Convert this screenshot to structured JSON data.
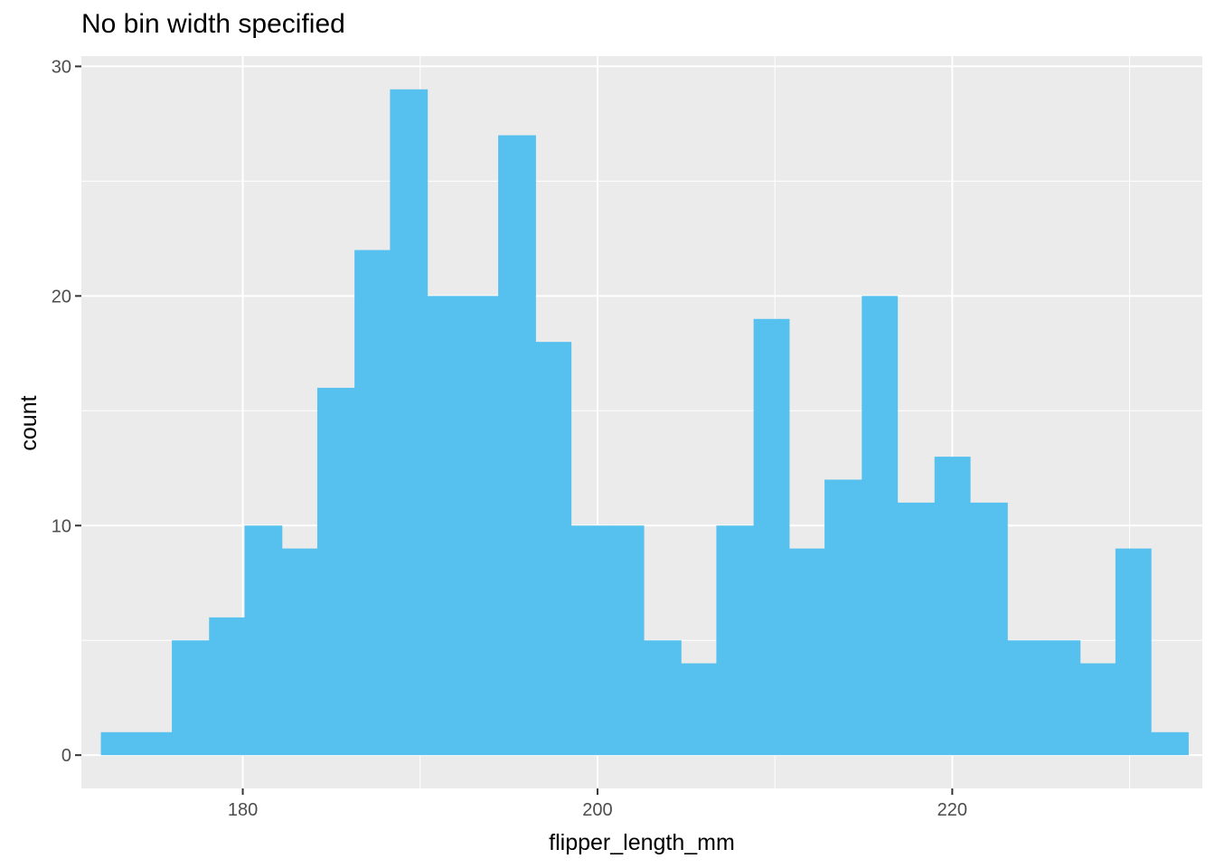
{
  "chart_data": {
    "type": "bar",
    "title": "No bin width specified",
    "xlabel": "flipper_length_mm",
    "ylabel": "count",
    "xlim": [
      170.9,
      234.1
    ],
    "ylim": [
      -1.45,
      30.45
    ],
    "x_ticks": [
      180,
      200,
      220
    ],
    "y_ticks": [
      0,
      10,
      20,
      30
    ],
    "grid": true,
    "fill_color": "#56C1EF",
    "panel_color": "#EBEBEB",
    "grid_color": "#FFFFFF",
    "bins": [
      {
        "x0": 172.0,
        "x1": 174.0,
        "count": 1
      },
      {
        "x0": 174.0,
        "x1": 176.0,
        "count": 1
      },
      {
        "x0": 176.0,
        "x1": 178.1,
        "count": 5
      },
      {
        "x0": 178.1,
        "x1": 180.1,
        "count": 6
      },
      {
        "x0": 180.1,
        "x1": 182.2,
        "count": 10
      },
      {
        "x0": 182.2,
        "x1": 184.2,
        "count": 9
      },
      {
        "x0": 184.2,
        "x1": 186.3,
        "count": 16
      },
      {
        "x0": 186.3,
        "x1": 188.3,
        "count": 22
      },
      {
        "x0": 188.3,
        "x1": 190.4,
        "count": 29
      },
      {
        "x0": 190.4,
        "x1": 192.4,
        "count": 20
      },
      {
        "x0": 192.4,
        "x1": 194.4,
        "count": 20
      },
      {
        "x0": 194.4,
        "x1": 196.5,
        "count": 27
      },
      {
        "x0": 196.5,
        "x1": 198.5,
        "count": 18
      },
      {
        "x0": 198.5,
        "x1": 200.6,
        "count": 10
      },
      {
        "x0": 200.6,
        "x1": 202.6,
        "count": 10
      },
      {
        "x0": 202.6,
        "x1": 204.7,
        "count": 5
      },
      {
        "x0": 204.7,
        "x1": 206.7,
        "count": 4
      },
      {
        "x0": 206.7,
        "x1": 208.8,
        "count": 10
      },
      {
        "x0": 208.8,
        "x1": 210.8,
        "count": 19
      },
      {
        "x0": 210.8,
        "x1": 212.8,
        "count": 9
      },
      {
        "x0": 212.8,
        "x1": 214.9,
        "count": 12
      },
      {
        "x0": 214.9,
        "x1": 216.9,
        "count": 20
      },
      {
        "x0": 216.9,
        "x1": 219.0,
        "count": 11
      },
      {
        "x0": 219.0,
        "x1": 221.0,
        "count": 13
      },
      {
        "x0": 221.0,
        "x1": 223.1,
        "count": 11
      },
      {
        "x0": 223.1,
        "x1": 225.1,
        "count": 5
      },
      {
        "x0": 225.1,
        "x1": 227.2,
        "count": 5
      },
      {
        "x0": 227.2,
        "x1": 229.2,
        "count": 4
      },
      {
        "x0": 229.2,
        "x1": 231.2,
        "count": 9
      },
      {
        "x0": 231.2,
        "x1": 233.3,
        "count": 1
      }
    ]
  }
}
